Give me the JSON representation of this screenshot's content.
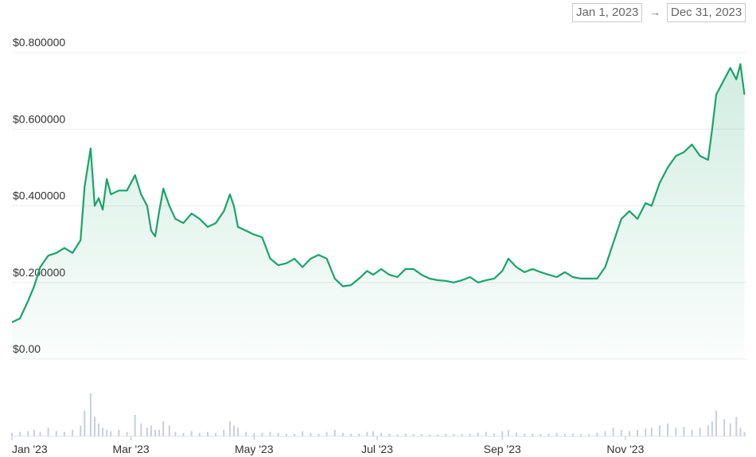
{
  "chart_data": {
    "type": "line",
    "date_range": {
      "start": "Jan 1, 2023",
      "end": "Dec 31, 2023"
    },
    "x": [
      0,
      4,
      8,
      11,
      14,
      18,
      22,
      26,
      30,
      34,
      36,
      39,
      41,
      43,
      45,
      47,
      49,
      53,
      57,
      61,
      64,
      67,
      69,
      71,
      73,
      75,
      78,
      81,
      85,
      89,
      93,
      97,
      101,
      105,
      108,
      110,
      112,
      116,
      120,
      124,
      128,
      132,
      136,
      140,
      144,
      148,
      152,
      156,
      160,
      164,
      168,
      172,
      176,
      179,
      183,
      187,
      191,
      195,
      199,
      203,
      207,
      211,
      215,
      219,
      223,
      227,
      231,
      235,
      239,
      243,
      246,
      250,
      254,
      258,
      262,
      266,
      270,
      274,
      278,
      282,
      286,
      290,
      294,
      298,
      302,
      306,
      310,
      314,
      317,
      321,
      325,
      329,
      333,
      337,
      341,
      345,
      347,
      349,
      353,
      356,
      359,
      361,
      363
    ],
    "values": [
      0.096,
      0.106,
      0.152,
      0.19,
      0.24,
      0.27,
      0.277,
      0.29,
      0.277,
      0.31,
      0.45,
      0.55,
      0.4,
      0.42,
      0.39,
      0.47,
      0.43,
      0.44,
      0.44,
      0.48,
      0.43,
      0.4,
      0.335,
      0.32,
      0.386,
      0.445,
      0.4,
      0.366,
      0.355,
      0.38,
      0.366,
      0.345,
      0.355,
      0.386,
      0.43,
      0.4,
      0.345,
      0.335,
      0.325,
      0.318,
      0.262,
      0.245,
      0.25,
      0.262,
      0.24,
      0.262,
      0.272,
      0.262,
      0.21,
      0.19,
      0.193,
      0.21,
      0.23,
      0.22,
      0.235,
      0.22,
      0.214,
      0.235,
      0.235,
      0.22,
      0.21,
      0.206,
      0.204,
      0.2,
      0.206,
      0.214,
      0.2,
      0.206,
      0.21,
      0.23,
      0.262,
      0.24,
      0.227,
      0.235,
      0.227,
      0.22,
      0.214,
      0.227,
      0.214,
      0.21,
      0.21,
      0.21,
      0.24,
      0.303,
      0.366,
      0.386,
      0.366,
      0.407,
      0.4,
      0.46,
      0.5,
      0.53,
      0.54,
      0.56,
      0.53,
      0.52,
      0.6,
      0.69,
      0.73,
      0.76,
      0.73,
      0.77,
      0.69
    ],
    "volume": [
      8,
      10,
      12,
      15,
      10,
      20,
      12,
      10,
      15,
      25,
      60,
      100,
      45,
      30,
      20,
      15,
      12,
      15,
      10,
      50,
      30,
      20,
      25,
      15,
      15,
      35,
      25,
      10,
      8,
      12,
      8,
      10,
      8,
      15,
      35,
      25,
      20,
      10,
      8,
      8,
      10,
      8,
      6,
      6,
      12,
      8,
      6,
      10,
      15,
      8,
      6,
      6,
      10,
      12,
      8,
      6,
      5,
      6,
      5,
      5,
      4,
      4,
      6,
      5,
      5,
      6,
      8,
      10,
      6,
      12,
      15,
      8,
      6,
      6,
      5,
      6,
      8,
      6,
      6,
      5,
      5,
      8,
      12,
      20,
      15,
      12,
      15,
      18,
      20,
      25,
      30,
      20,
      22,
      15,
      20,
      25,
      35,
      60,
      40,
      30,
      45,
      20,
      10
    ],
    "color": "#1aa36b",
    "volume_color": "#c8cde0",
    "xlim": [
      0,
      364
    ],
    "xticks": [
      {
        "value": 0,
        "label": "Jan '23"
      },
      {
        "value": 59,
        "label": "Mar '23"
      },
      {
        "value": 120,
        "label": "May '23"
      },
      {
        "value": 181,
        "label": "Jul '23"
      },
      {
        "value": 243,
        "label": "Sep '23"
      },
      {
        "value": 304,
        "label": "Nov '23"
      }
    ],
    "ylim": [
      0,
      0.8
    ],
    "yticks": [
      {
        "value": 0,
        "label": "$0.00"
      },
      {
        "value": 0.2,
        "label": "$0.200000"
      },
      {
        "value": 0.4,
        "label": "$0.400000"
      },
      {
        "value": 0.6,
        "label": "$0.600000"
      },
      {
        "value": 0.8,
        "label": "$0.800000"
      }
    ],
    "grid": true
  }
}
